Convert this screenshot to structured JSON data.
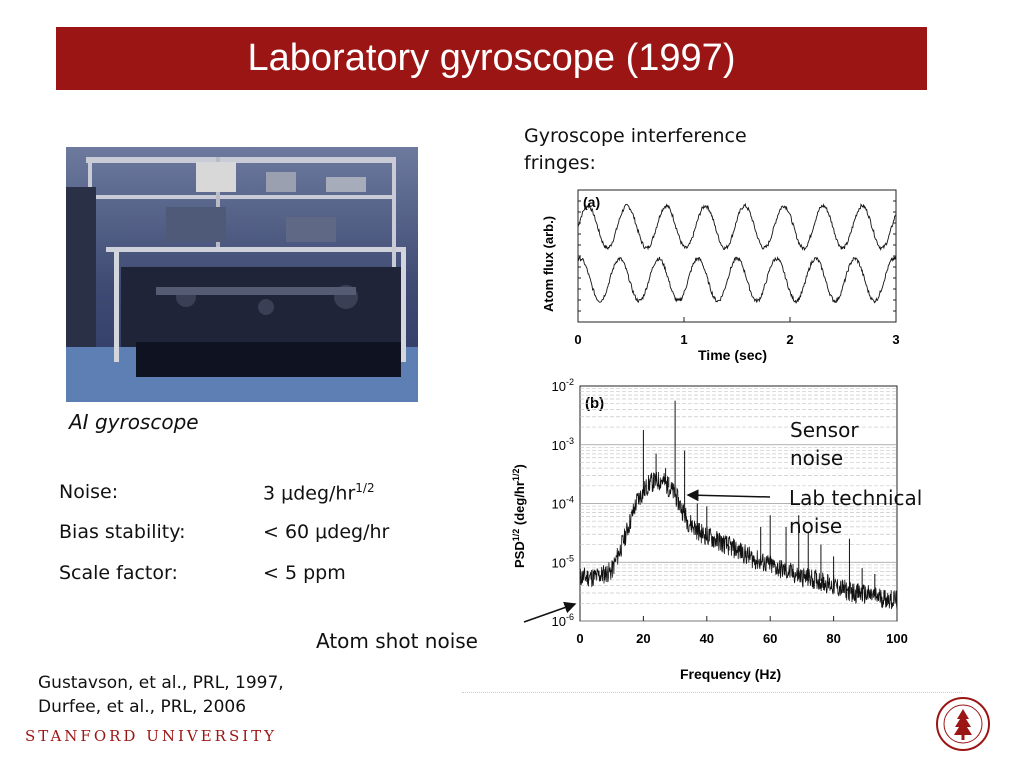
{
  "title": "Laboratory gyroscope (1997)",
  "photo_caption": "AI gyroscope",
  "specs": [
    {
      "label": "Noise:",
      "value": "3 μdeg/hr",
      "sup": "1/2"
    },
    {
      "label": "Bias stability:",
      "value": "< 60 μdeg/hr",
      "sup": ""
    },
    {
      "label": "Scale factor:",
      "value": "< 5 ppm",
      "sup": ""
    }
  ],
  "fringes_heading": [
    "Gyroscope interference",
    "fringes:"
  ],
  "annotations": {
    "sensor_noise": [
      "Sensor",
      "noise"
    ],
    "lab_noise": [
      "Lab technical",
      "noise"
    ],
    "atom_shot_noise": "Atom shot noise"
  },
  "references": [
    "Gustavson, et al., PRL, 1997,",
    "Durfee, et al., PRL, 2006"
  ],
  "footer": "STANFORD UNIVERSITY",
  "colors": {
    "title_bar": "#9c1515",
    "stanford_red": "#9c1515"
  },
  "chart_data": [
    {
      "type": "line",
      "panel_label": "(a)",
      "xlabel": "Time (sec)",
      "ylabel": "Atom flux (arb.)",
      "xlim": [
        0,
        3
      ],
      "xticks": [
        "0",
        "1",
        "2",
        "3"
      ],
      "series": [
        {
          "values_description": "sinusoid",
          "period_sec": 0.37,
          "offset_frac": 0.72,
          "amp_frac": 0.16,
          "phase": 0.0
        },
        {
          "values_description": "sinusoid",
          "period_sec": 0.37,
          "offset_frac": 0.32,
          "amp_frac": 0.16,
          "phase": 1.2
        }
      ]
    },
    {
      "type": "line",
      "panel_label": "(b)",
      "xlabel": "Frequency (Hz)",
      "ylabel": "PSD",
      "ylabel_sup": "1/2",
      "ylabel_unit": "(deg/hr",
      "ylabel_unit_sup": "1/2",
      "xlim": [
        0,
        100
      ],
      "ylim_log10": [
        -6,
        -2
      ],
      "xticks": [
        "0",
        "20",
        "40",
        "60",
        "80",
        "100"
      ],
      "yticks": [
        {
          "base": "10",
          "exp": "-2"
        },
        {
          "base": "10",
          "exp": "-3"
        },
        {
          "base": "10",
          "exp": "-4"
        },
        {
          "base": "10",
          "exp": "-5"
        },
        {
          "base": "10",
          "exp": "-6"
        }
      ],
      "envelope": [
        [
          0,
          -5.25
        ],
        [
          5,
          -5.25
        ],
        [
          10,
          -5.15
        ],
        [
          14,
          -4.6
        ],
        [
          18,
          -3.95
        ],
        [
          22,
          -3.65
        ],
        [
          26,
          -3.6
        ],
        [
          30,
          -3.85
        ],
        [
          34,
          -4.3
        ],
        [
          38,
          -4.5
        ],
        [
          42,
          -4.6
        ],
        [
          46,
          -4.7
        ],
        [
          50,
          -4.8
        ],
        [
          55,
          -4.95
        ],
        [
          60,
          -5.05
        ],
        [
          65,
          -5.15
        ],
        [
          70,
          -5.25
        ],
        [
          75,
          -5.3
        ],
        [
          80,
          -5.4
        ],
        [
          85,
          -5.5
        ],
        [
          90,
          -5.55
        ],
        [
          95,
          -5.6
        ],
        [
          100,
          -5.65
        ]
      ],
      "spikes": [
        [
          20,
          -2.75
        ],
        [
          24,
          -3.15
        ],
        [
          27,
          -3.4
        ],
        [
          28,
          -3.55
        ],
        [
          30,
          -2.25
        ],
        [
          33,
          -3.1
        ],
        [
          37,
          -4.0
        ],
        [
          40,
          -4.05
        ],
        [
          44,
          -4.5
        ],
        [
          47,
          -4.8
        ],
        [
          57,
          -4.4
        ],
        [
          60,
          -4.2
        ],
        [
          65,
          -4.4
        ],
        [
          69,
          -4.2
        ],
        [
          72,
          -4.5
        ],
        [
          76,
          -4.7
        ],
        [
          80,
          -4.9
        ],
        [
          85,
          -4.6
        ],
        [
          89,
          -5.1
        ],
        [
          93,
          -5.2
        ]
      ]
    }
  ]
}
